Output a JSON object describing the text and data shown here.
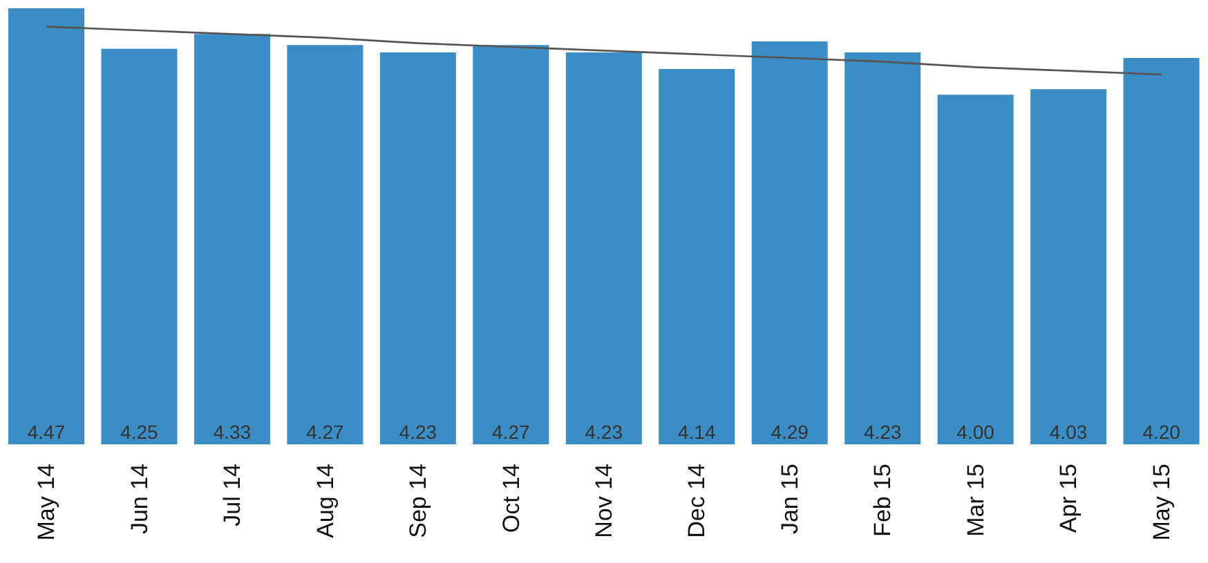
{
  "chart_data": {
    "type": "bar",
    "categories": [
      "May 14",
      "Jun 14",
      "Jul 14",
      "Aug 14",
      "Sep 14",
      "Oct 14",
      "Nov 14",
      "Dec 14",
      "Jan 15",
      "Feb 15",
      "Mar 15",
      "Apr 15",
      "May 15"
    ],
    "series": [
      {
        "color": "#3a8dc5",
        "values": [
          4.47,
          4.25,
          4.33,
          4.27,
          4.23,
          4.27,
          4.23,
          4.14,
          4.29,
          4.23,
          4.0,
          4.03,
          4.2
        ],
        "value_labels": [
          "4.47",
          "4.25",
          "4.33",
          "4.27",
          "4.23",
          "4.27",
          "4.23",
          "4.14",
          "4.29",
          "4.23",
          "4.00",
          "4.03",
          "4.20"
        ]
      },
      {
        "type": "line",
        "color": "#555555",
        "values": [
          4.37,
          4.35,
          4.33,
          4.31,
          4.28,
          4.26,
          4.24,
          4.22,
          4.2,
          4.18,
          4.15,
          4.13,
          4.11
        ]
      }
    ],
    "ylim": [
      2.1,
      4.5
    ],
    "tick_labels": "x",
    "marker": "none"
  }
}
